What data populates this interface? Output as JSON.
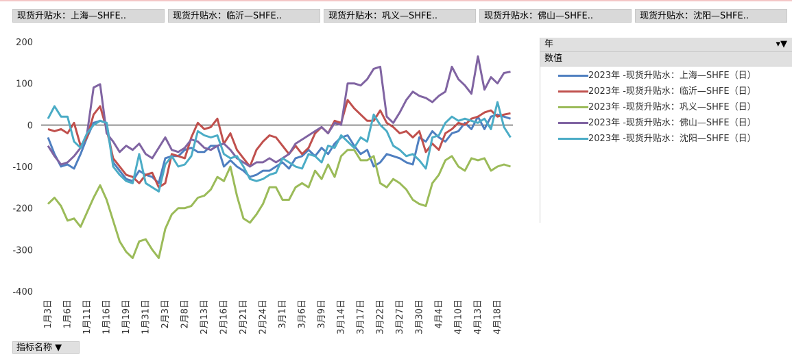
{
  "filters": [
    "现货升贴水：上海—SHFE..",
    "现货升贴水：临沂—SHFE..",
    "现货升贴水：巩义—SHFE..",
    "现货升贴水：佛山—SHFE..",
    "现货升贴水：沈阳—SHFE.."
  ],
  "legend_header": "年",
  "legend_subheader": "数值",
  "field_button": "指标名称",
  "chart_data": {
    "type": "line",
    "categories": [
      "1月3日",
      null,
      null,
      "1月6日",
      null,
      null,
      "1月11日",
      null,
      null,
      "1月16日",
      null,
      null,
      "1月19日",
      null,
      null,
      "1月31日",
      null,
      null,
      "2月3日",
      null,
      null,
      "2月8日",
      null,
      null,
      "2月13日",
      null,
      null,
      "2月16日",
      null,
      null,
      "2月21日",
      null,
      null,
      "2月24日",
      null,
      null,
      "3月1日",
      null,
      null,
      "3月6日",
      null,
      null,
      "3月9日",
      null,
      null,
      "3月14日",
      null,
      null,
      "3月17日",
      null,
      null,
      "3月22日",
      null,
      null,
      "3月27日",
      null,
      null,
      "3月30日",
      null,
      null,
      "4月4日",
      null,
      null,
      "4月10日",
      null,
      null,
      "4月13日",
      null,
      null,
      "4月18日",
      null,
      null
    ],
    "ylim": [
      -400,
      200
    ],
    "yticks": [
      -400,
      -300,
      -200,
      -100,
      0,
      100,
      200
    ],
    "grid": false,
    "series": [
      {
        "name": "2023年 -现货升贴水：上海—SHFE（日）",
        "color": "#4f7fc0",
        "values": [
          -30,
          -70,
          -100,
          -95,
          -105,
          -70,
          -30,
          5,
          10,
          5,
          -90,
          -110,
          -130,
          -135,
          -110,
          -120,
          -125,
          -140,
          -80,
          -75,
          -75,
          -60,
          -55,
          -65,
          -65,
          -50,
          -50,
          -100,
          -85,
          -100,
          -110,
          -125,
          -120,
          -110,
          -110,
          -100,
          -90,
          -105,
          -80,
          -75,
          -60,
          -75,
          -55,
          -70,
          -45,
          -30,
          -25,
          -50,
          -70,
          -60,
          -100,
          -90,
          -70,
          -75,
          -80,
          -90,
          -95,
          -30,
          -40,
          -15,
          -30,
          -40,
          -20,
          -15,
          5,
          -10,
          20,
          -10,
          20,
          25,
          20,
          15
        ]
      },
      {
        "name": "2023年 -现货升贴水：临沂—SHFE（日）",
        "color": "#c0504d",
        "values": [
          -10,
          -15,
          -10,
          -20,
          5,
          -50,
          -30,
          25,
          45,
          -10,
          -80,
          -100,
          -120,
          -125,
          -140,
          -120,
          -115,
          -150,
          -140,
          -70,
          -75,
          -80,
          -30,
          5,
          -10,
          -5,
          15,
          -45,
          -20,
          -60,
          -80,
          -100,
          -60,
          -40,
          -25,
          -30,
          -50,
          -70,
          -50,
          -70,
          -55,
          -20,
          -5,
          -20,
          10,
          5,
          60,
          40,
          25,
          10,
          10,
          35,
          5,
          -5,
          -20,
          -15,
          -30,
          -15,
          -65,
          -45,
          -60,
          -20,
          -10,
          5,
          0,
          15,
          20,
          30,
          35,
          20,
          25,
          28
        ]
      },
      {
        "name": "2023年 -现货升贴水：巩义—SHFE（日）",
        "color": "#9bbb59",
        "values": [
          -190,
          -175,
          -195,
          -230,
          -225,
          -245,
          -210,
          -175,
          -145,
          -180,
          -230,
          -280,
          -305,
          -320,
          -280,
          -275,
          -300,
          -320,
          -250,
          -215,
          -200,
          -200,
          -195,
          -175,
          -170,
          -155,
          -125,
          -135,
          -100,
          -170,
          -225,
          -235,
          -215,
          -190,
          -150,
          -150,
          -180,
          -180,
          -150,
          -140,
          -150,
          -110,
          -130,
          -95,
          -125,
          -75,
          -60,
          -60,
          -85,
          -85,
          -75,
          -140,
          -150,
          -130,
          -140,
          -155,
          -180,
          -190,
          -195,
          -140,
          -120,
          -85,
          -75,
          -100,
          -110,
          -80,
          -85,
          -80,
          -110,
          -100,
          -95,
          -100
        ]
      },
      {
        "name": "2023年 -现货升贴水：佛山—SHFE（日）",
        "color": "#8064a2",
        "values": [
          -50,
          -75,
          -95,
          -90,
          -75,
          -55,
          -20,
          90,
          98,
          -20,
          -40,
          -65,
          -50,
          -60,
          -45,
          -70,
          -80,
          -55,
          -30,
          -60,
          -65,
          -55,
          -35,
          -40,
          -55,
          -60,
          -50,
          -45,
          -60,
          -80,
          -90,
          -100,
          -90,
          -90,
          -80,
          -90,
          -80,
          -70,
          -45,
          -35,
          -25,
          -15,
          -5,
          -20,
          5,
          0,
          100,
          100,
          95,
          110,
          135,
          140,
          20,
          5,
          30,
          60,
          80,
          70,
          65,
          55,
          70,
          80,
          140,
          110,
          95,
          75,
          165,
          85,
          115,
          100,
          125,
          128
        ]
      },
      {
        "name": "2023年 -现货升贴水：沈阳—SHFE（日）",
        "color": "#4bacc6",
        "values": [
          15,
          45,
          20,
          20,
          -40,
          -55,
          -20,
          0,
          10,
          5,
          -100,
          -120,
          -135,
          -140,
          -70,
          -140,
          -150,
          -160,
          -95,
          -75,
          -100,
          -95,
          -75,
          -15,
          -25,
          -30,
          -25,
          -70,
          -80,
          -75,
          -100,
          -130,
          -135,
          -130,
          -120,
          -115,
          -80,
          -90,
          -100,
          -105,
          -70,
          -75,
          -90,
          -50,
          -55,
          -25,
          -40,
          -55,
          -30,
          -40,
          25,
          0,
          -15,
          -50,
          -60,
          -75,
          -70,
          -85,
          -105,
          -30,
          -25,
          5,
          20,
          10,
          15,
          10,
          5,
          15,
          -10,
          55,
          -5,
          -30
        ]
      }
    ]
  }
}
